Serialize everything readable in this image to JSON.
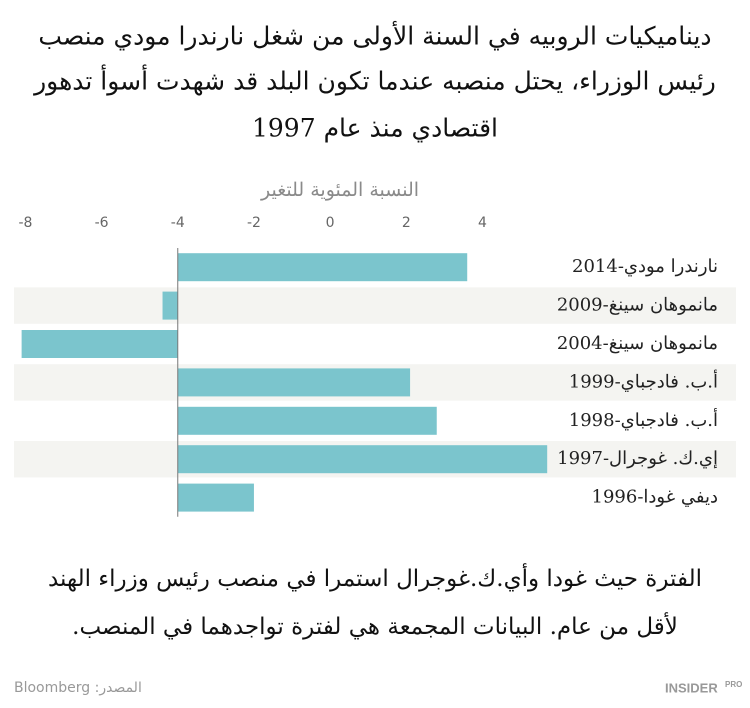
{
  "chart_data": {
    "type": "bar",
    "orientation": "horizontal",
    "title": [
      "ديناميكيات الروبيه في السنة الأولى من شغل نارندرا مودي  منصب",
      "رئيس الوزراء، يحتل منصبه عندما تكون البلد قد شهدت أسوأ تدهور",
      "اقتصادي منذ عام 1997"
    ],
    "x_label": "النسبة المئوية للتغير",
    "categories": [
      "نارندرا مودي-2014",
      "مانموهان سينغ-2009",
      "مانموهان سينغ-2004",
      "أ.ب. فادجباي-1999",
      "أ.ب. فادجباي-1998",
      "إي.ك. غوجرال-1997",
      "ديفي غودا-1996"
    ],
    "values": [
      3.6,
      -4.4,
      -8.1,
      2.1,
      2.8,
      5.7,
      -2.0
    ],
    "color": "#7bc5cd",
    "baseline": -4,
    "xlim": [
      -8.3,
      5.8
    ],
    "xticks": [
      -8,
      -6,
      -4,
      -2,
      0,
      2,
      4
    ],
    "grid": false,
    "striped_rows": true,
    "note": [
      "الفترة حيث غودا وأي.ك.غوجرال استمرا في منصب رئيس وزراء الهند",
      "لأقل من عام. البيانات المجمعة هي لفترة تواجدهما في المنصب."
    ],
    "source": "المصدر: Bloomberg",
    "logo": "INSIDER",
    "logo_suffix": "PRO"
  }
}
